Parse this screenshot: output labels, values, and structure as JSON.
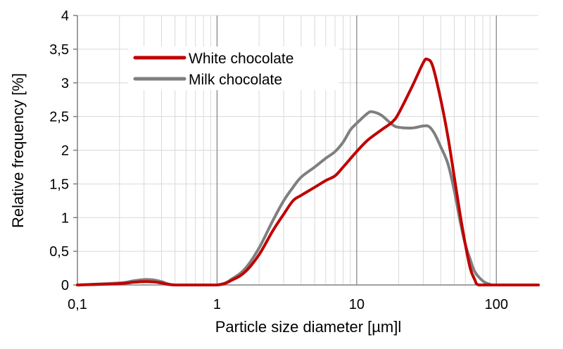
{
  "chart_data": {
    "type": "line",
    "xlabel": "Particle size diameter [µm]l",
    "ylabel": "Relative frequency [%]",
    "x_scale": "log",
    "xlim": [
      0.1,
      200
    ],
    "ylim": [
      0,
      4
    ],
    "x_ticks": [
      0.1,
      1,
      10,
      100
    ],
    "x_tick_labels": [
      "0,1",
      "1",
      "10",
      "100"
    ],
    "y_ticks": [
      0,
      0.5,
      1,
      1.5,
      2,
      2.5,
      3,
      3.5,
      4
    ],
    "y_tick_labels": [
      "0",
      "0,5",
      "1",
      "1,5",
      "2",
      "2,5",
      "3",
      "3,5",
      "4"
    ],
    "grid": true,
    "legend_position": "top-left",
    "series": [
      {
        "name": "White chocolate",
        "color": "#c00000",
        "points": [
          [
            0.1,
            0.0
          ],
          [
            0.2,
            0.02
          ],
          [
            0.25,
            0.04
          ],
          [
            0.3,
            0.05
          ],
          [
            0.35,
            0.045
          ],
          [
            0.4,
            0.03
          ],
          [
            0.5,
            0.0
          ],
          [
            1,
            0.0
          ],
          [
            1.3,
            0.08
          ],
          [
            1.6,
            0.2
          ],
          [
            2,
            0.45
          ],
          [
            2.5,
            0.8
          ],
          [
            3,
            1.05
          ],
          [
            3.5,
            1.25
          ],
          [
            4,
            1.33
          ],
          [
            5,
            1.45
          ],
          [
            6,
            1.55
          ],
          [
            7,
            1.62
          ],
          [
            8,
            1.75
          ],
          [
            10,
            1.98
          ],
          [
            12,
            2.15
          ],
          [
            15,
            2.3
          ],
          [
            18,
            2.42
          ],
          [
            20,
            2.55
          ],
          [
            25,
            2.95
          ],
          [
            30,
            3.3
          ],
          [
            32,
            3.35
          ],
          [
            35,
            3.25
          ],
          [
            40,
            2.75
          ],
          [
            45,
            2.2
          ],
          [
            50,
            1.6
          ],
          [
            55,
            1.05
          ],
          [
            60,
            0.6
          ],
          [
            65,
            0.25
          ],
          [
            70,
            0.08
          ],
          [
            75,
            0.0
          ],
          [
            100,
            0.0
          ],
          [
            200,
            0.0
          ]
        ]
      },
      {
        "name": "Milk chocolate",
        "color": "#7f7f7f",
        "points": [
          [
            0.1,
            0.0
          ],
          [
            0.2,
            0.03
          ],
          [
            0.25,
            0.06
          ],
          [
            0.3,
            0.08
          ],
          [
            0.35,
            0.075
          ],
          [
            0.4,
            0.05
          ],
          [
            0.5,
            0.0
          ],
          [
            1,
            0.0
          ],
          [
            1.3,
            0.1
          ],
          [
            1.6,
            0.25
          ],
          [
            2,
            0.55
          ],
          [
            2.5,
            0.95
          ],
          [
            3,
            1.25
          ],
          [
            3.5,
            1.45
          ],
          [
            4,
            1.6
          ],
          [
            5,
            1.75
          ],
          [
            6,
            1.88
          ],
          [
            7,
            1.98
          ],
          [
            8,
            2.12
          ],
          [
            9,
            2.3
          ],
          [
            10,
            2.4
          ],
          [
            12,
            2.55
          ],
          [
            13,
            2.57
          ],
          [
            15,
            2.52
          ],
          [
            18,
            2.38
          ],
          [
            20,
            2.34
          ],
          [
            25,
            2.33
          ],
          [
            30,
            2.36
          ],
          [
            33,
            2.35
          ],
          [
            36,
            2.25
          ],
          [
            40,
            2.05
          ],
          [
            45,
            1.8
          ],
          [
            50,
            1.4
          ],
          [
            55,
            0.95
          ],
          [
            60,
            0.6
          ],
          [
            65,
            0.38
          ],
          [
            70,
            0.2
          ],
          [
            80,
            0.06
          ],
          [
            90,
            0.01
          ],
          [
            100,
            0.0
          ],
          [
            200,
            0.0
          ]
        ]
      }
    ]
  }
}
